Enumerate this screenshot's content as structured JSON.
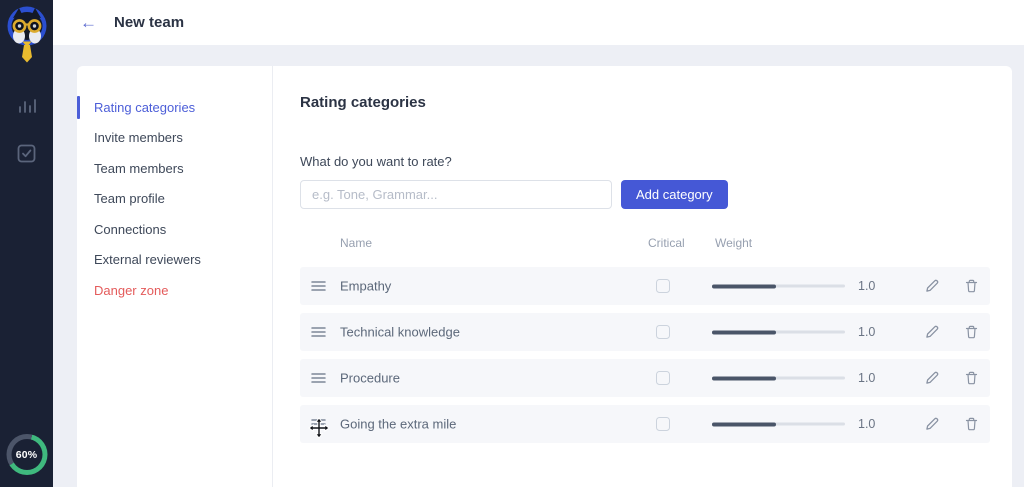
{
  "header": {
    "title": "New team",
    "back_label": "←"
  },
  "sidebar": {
    "progress_label": "60%"
  },
  "nav": {
    "items": [
      {
        "label": "Rating categories",
        "state": "active"
      },
      {
        "label": "Invite members",
        "state": "normal"
      },
      {
        "label": "Team members",
        "state": "normal"
      },
      {
        "label": "Team profile",
        "state": "normal"
      },
      {
        "label": "Connections",
        "state": "normal"
      },
      {
        "label": "External reviewers",
        "state": "normal"
      },
      {
        "label": "Danger zone",
        "state": "danger"
      }
    ]
  },
  "content": {
    "title": "Rating categories",
    "question_label": "What do you want to rate?",
    "category_input": {
      "value": "",
      "placeholder": "e.g. Tone, Grammar..."
    },
    "add_button_label": "Add category",
    "table": {
      "columns": [
        "Name",
        "Critical",
        "Weight"
      ],
      "rows": [
        {
          "name": "Empathy",
          "critical": false,
          "weight": "1.0",
          "weight_percent": 48
        },
        {
          "name": "Technical knowledge",
          "critical": false,
          "weight": "1.0",
          "weight_percent": 48
        },
        {
          "name": "Procedure",
          "critical": false,
          "weight": "1.0",
          "weight_percent": 48
        },
        {
          "name": "Going the extra mile",
          "critical": false,
          "weight": "1.0",
          "weight_percent": 48
        }
      ]
    }
  },
  "colors": {
    "accent": "#4558d6",
    "danger": "#e45b5b",
    "progress_green": "#3fb97e",
    "slider_fill": "#4a5568"
  },
  "cursor": {
    "type": "move"
  }
}
